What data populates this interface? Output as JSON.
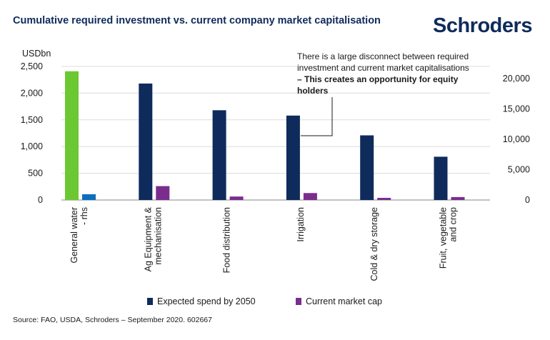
{
  "header": {
    "title": "Cumulative required investment vs. current company market capitalisation",
    "logo_text": "Schroders"
  },
  "colors": {
    "expected_spend": "#0f2b5b",
    "market_cap": "#7b2d8e",
    "general_water_left": "#6cc832",
    "general_water_right": "#0d6ebf",
    "title": "#0f2b5b"
  },
  "annotation": {
    "normal": "There is a large disconnect between required investment and current market capitalisations",
    "bold": "– This creates an opportunity for equity holders"
  },
  "legend": {
    "expected": "Expected spend by 2050",
    "market": "Current market cap"
  },
  "source": "Source: FAO, USDA, Schroders – September 2020. 602667",
  "chart_data": {
    "type": "bar",
    "title": "Cumulative required investment vs. current company market capitalisation",
    "ylabel": "USDbn",
    "ylim": [
      0,
      2500
    ],
    "yticks": [
      0,
      500,
      1000,
      1500,
      2000,
      2500
    ],
    "ytick_labels": [
      "0",
      "500",
      "1,000",
      "1,500",
      "2,000",
      "2,500"
    ],
    "y2lim": [
      0,
      22000
    ],
    "y2ticks": [
      0,
      5000,
      10000,
      15000,
      20000
    ],
    "y2tick_labels": [
      "0",
      "5,000",
      "10,000",
      "15,000",
      "20,000"
    ],
    "grid": true,
    "legend_position": "bottom",
    "categories": [
      [
        "General water",
        "- rhs"
      ],
      [
        "Ag Equipment &",
        "mechanisation"
      ],
      [
        "Food distribution"
      ],
      [
        "Irrigation"
      ],
      [
        "Cold & dry storage"
      ],
      [
        "Fruit, vegetable",
        "and crop"
      ]
    ],
    "series": [
      {
        "name": "Expected spend by 2050",
        "values": [
          21200,
          2180,
          1680,
          1580,
          1210,
          810
        ]
      },
      {
        "name": "Current market cap",
        "values": [
          950,
          260,
          65,
          130,
          40,
          55
        ]
      }
    ],
    "axis_mapping": [
      "right",
      "left",
      "left",
      "left",
      "left",
      "left"
    ]
  }
}
